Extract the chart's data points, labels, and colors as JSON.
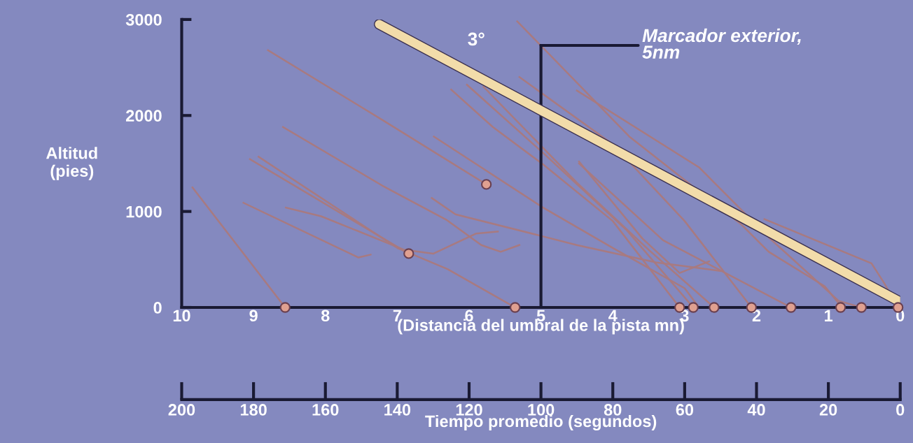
{
  "chart_data": {
    "type": "line",
    "xlabel": "(Distancia del umbral de la pista mn)",
    "ylabel": "Altitud\n(pies)",
    "x2label": "Tiempo promedio (segundos)",
    "xlim": [
      10,
      0
    ],
    "xticks": [
      10,
      9,
      8,
      7,
      6,
      5,
      4,
      3,
      2,
      1,
      0
    ],
    "ylim": [
      0,
      3000
    ],
    "yticks": [
      0,
      1000,
      2000,
      3000
    ],
    "x2lim": [
      200,
      0
    ],
    "x2ticks": [
      200,
      180,
      160,
      140,
      120,
      100,
      80,
      60,
      40,
      20,
      0
    ],
    "annotations": [
      "3°"
    ],
    "ref_lines": [
      {
        "axis": "x",
        "value": 5,
        "label": "Marcador exterior,\n5nm",
        "color": "#1a1a33"
      }
    ],
    "series": [
      {
        "color": "#a87a80",
        "x": [
          9.85,
          8.56
        ],
        "values": [
          1250,
          0
        ]
      },
      {
        "color": "#a87a80",
        "x": [
          8.8,
          7.2,
          5.76
        ],
        "values": [
          2680,
          1950,
          1282
        ]
      },
      {
        "color": "#a87a80",
        "x": [
          8.59,
          7.21,
          6.32,
          5.83,
          5.56,
          5.3
        ],
        "values": [
          1880,
          1270,
          915,
          650,
          580,
          650
        ]
      },
      {
        "color": "#a87a80",
        "x": [
          9.05,
          6.84
        ],
        "values": [
          1545,
          561
        ]
      },
      {
        "color": "#a87a80",
        "x": [
          8.93,
          7.0,
          6.3,
          5.36
        ],
        "values": [
          1570,
          620,
          400,
          0
        ]
      },
      {
        "color": "#a87a80",
        "x": [
          9.14,
          7.54,
          7.37
        ],
        "values": [
          1090,
          520,
          550
        ]
      },
      {
        "color": "#a87a80",
        "x": [
          8.55,
          8.06,
          6.9,
          6.5,
          5.9,
          5.6
        ],
        "values": [
          1040,
          950,
          600,
          560,
          770,
          790
        ]
      },
      {
        "color": "#a87a80",
        "x": [
          6.52,
          6.19,
          4.97,
          4.5,
          3.4,
          2.5
        ],
        "values": [
          1140,
          970,
          740,
          650,
          470,
          380
        ]
      },
      {
        "color": "#a87a80",
        "x": [
          6.49,
          4.97,
          4.0,
          3.0,
          2.8
        ],
        "values": [
          1780,
          1040,
          620,
          200,
          0
        ]
      },
      {
        "color": "#a87a80",
        "x": [
          6.25,
          5.67,
          4.97,
          4.0,
          3.07
        ],
        "values": [
          2270,
          1880,
          1490,
          900,
          0
        ]
      },
      {
        "color": "#a87a80",
        "x": [
          6.03,
          4.97,
          3.8,
          2.88
        ],
        "values": [
          2320,
          1610,
          800,
          0
        ]
      },
      {
        "color": "#a87a80",
        "x": [
          5.33,
          3.77,
          2.22,
          1.83,
          1.05,
          0.81
        ],
        "values": [
          2980,
          1780,
          870,
          580,
          220,
          0
        ]
      },
      {
        "color": "#a87a80",
        "x": [
          4.5,
          2.8,
          1.83,
          0.86,
          0.54
        ],
        "values": [
          2260,
          1460,
          730,
          70,
          0
        ]
      },
      {
        "color": "#a87a80",
        "x": [
          1.89,
          0.4,
          0.22,
          0.03
        ],
        "values": [
          920,
          460,
          250,
          0
        ]
      },
      {
        "color": "#a87a80",
        "x": [
          4.47,
          3.59,
          3.07,
          2.66
        ],
        "values": [
          1520,
          720,
          360,
          480
        ]
      },
      {
        "color": "#a87a80",
        "x": [
          4.47,
          3.3,
          1.52
        ],
        "values": [
          1500,
          700,
          0
        ]
      },
      {
        "color": "#a87a80",
        "x": [
          5.3,
          4.0,
          3.0,
          2.07
        ],
        "values": [
          2400,
          1700,
          900,
          0
        ]
      },
      {
        "color": "#a87a80",
        "x": [
          5.8,
          4.5,
          3.5,
          2.59
        ],
        "values": [
          2300,
          1300,
          600,
          0
        ]
      },
      {
        "color": "#f2dcaa",
        "x": [
          7.25,
          0.03
        ],
        "values": [
          2950,
          70
        ]
      },
      {
        "type": "scatter",
        "color": "#e0a090",
        "marker": "circle",
        "x": [
          8.56,
          5.36,
          3.07,
          2.88,
          2.59,
          2.07,
          1.52,
          0.83,
          0.54,
          0.03,
          5.76,
          6.84
        ],
        "values": [
          0,
          0,
          0,
          0,
          0,
          0,
          0,
          0,
          0,
          0,
          1282,
          561
        ]
      }
    ]
  }
}
